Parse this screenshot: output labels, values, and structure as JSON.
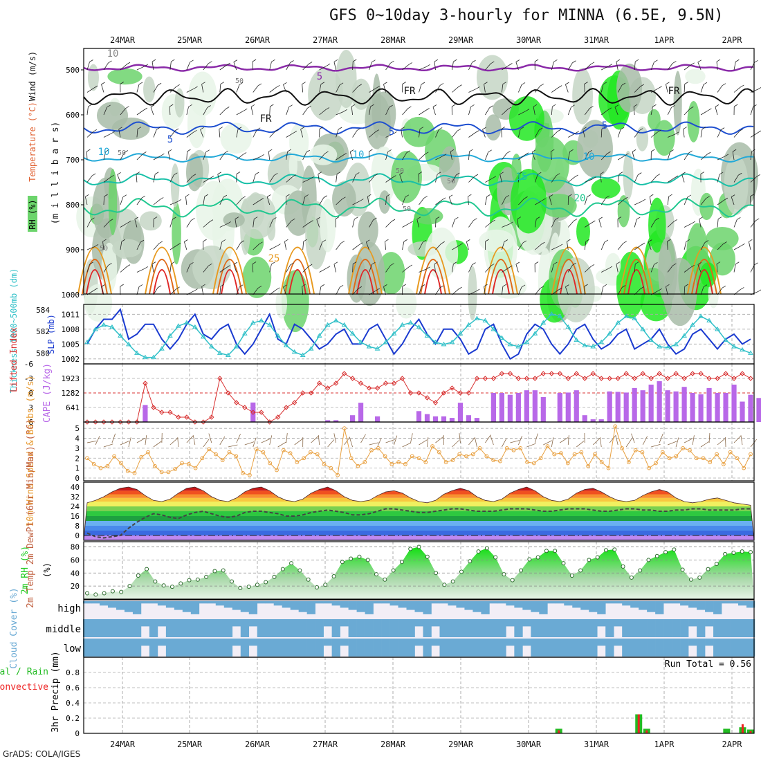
{
  "title": "GFS 0~10day 3-hourly for MINNA (6.5E, 9.5N)",
  "credit": "GrADS: COLA/IGES",
  "date_labels": [
    "24MAR",
    "25MAR",
    "26MAR",
    "27MAR",
    "28MAR",
    "29MAR",
    "30MAR",
    "31MAR",
    "1APR",
    "2APR"
  ],
  "colors": {
    "rh_light": "#e8f4e8",
    "rh_mid": "#c6d6c6",
    "rh_dark": "#a8bca8",
    "rh_green": "#6cd46c",
    "rh_bright": "#22e822",
    "temp_purple": "#8a2aa8",
    "temp_blue": "#1e4fd0",
    "temp_cyan": "#22a9d8",
    "temp_teal": "#18c0a8",
    "temp_orange": "#e89a20",
    "temp_dark_orange": "#e06a18",
    "temp_red": "#e02828",
    "slp": "#1a3ad0",
    "thickness": "#30c0c8",
    "li": "#d83030",
    "cape": "#b868e8",
    "wind10": "#e8a040",
    "rh2m": "#22cc22",
    "cloud": "#6aaad4",
    "rain": "#22bb22",
    "conv": "#ee2222"
  },
  "chart_data": [
    {
      "type": "heatmap",
      "name_label": "RH (%)",
      "y_axis_label": "(m i l l i b a r s)",
      "side_labels": [
        "RH (%)",
        "Temperature (°C)",
        "Wind (m/s)"
      ],
      "yticks": [
        500,
        600,
        700,
        800,
        900,
        1000
      ],
      "ylim": [
        1000,
        450
      ],
      "contour_labels": [
        "10",
        "5",
        "FR",
        "FR",
        "FR",
        "5",
        "5",
        "5",
        "10",
        "10",
        "10",
        "15",
        "20",
        "25"
      ],
      "rh_labels": [
        "50",
        "50",
        "50",
        "50",
        "50",
        "50"
      ]
    },
    {
      "type": "line",
      "left_label": "Thickness 1000~500mb (dm)",
      "right_label": "SLP (mb)",
      "left_ticks": [
        580,
        582,
        584
      ],
      "right_ticks": [
        1002,
        1005,
        1008,
        1011
      ],
      "slp_ylim": [
        1001,
        1013
      ],
      "series": [
        {
          "name": "SLP (mb)",
          "values": [
            1005,
            1008,
            1010,
            1010,
            1012,
            1006,
            1007,
            1009,
            1009,
            1006,
            1004,
            1006,
            1009,
            1011,
            1007,
            1006,
            1008,
            1009,
            1005,
            1003,
            1005,
            1008,
            1011,
            1006,
            1005,
            1009,
            1008,
            1006,
            1004,
            1005,
            1007,
            1008,
            1005,
            1005,
            1008,
            1009,
            1006,
            1003,
            1005,
            1008,
            1010,
            1007,
            1005,
            1008,
            1008,
            1006,
            1003,
            1004,
            1008,
            1009,
            1005,
            1002,
            1003,
            1007,
            1009,
            1008,
            1005,
            1003,
            1005,
            1008,
            1009,
            1006,
            1004,
            1005,
            1007,
            1008,
            1004,
            1005,
            1006,
            1008,
            1005,
            1003,
            1004,
            1007,
            1008,
            1006,
            1004,
            1006,
            1007,
            1005,
            1006
          ]
        },
        {
          "name": "1000~500mb thickness (dm)",
          "values": [
            581.0,
            582.2,
            582.6,
            582.4,
            581.6,
            580.8,
            580.0,
            579.6,
            579.6,
            580.4,
            581.6,
            582.5,
            582.8,
            582.4,
            581.5,
            580.6,
            580.0,
            579.8,
            580.6,
            581.8,
            582.8,
            583.0,
            582.6,
            581.6,
            580.7,
            580.1,
            579.8,
            580.4,
            581.6,
            582.6,
            583.0,
            582.6,
            581.8,
            581.0,
            580.6,
            580.4,
            581.0,
            581.8,
            582.6,
            582.8,
            582.4,
            581.6,
            581.0,
            580.8,
            581.0,
            581.8,
            582.6,
            583.2,
            583.0,
            582.2,
            581.4,
            580.8,
            580.6,
            581.0,
            581.8,
            582.8,
            583.6,
            583.4,
            582.4,
            581.2,
            580.7,
            580.6,
            581.0,
            581.8,
            582.8,
            583.4,
            583.2,
            582.2,
            581.2,
            580.6,
            580.5,
            580.8,
            581.6,
            582.6,
            583.4,
            583.0,
            582.2,
            581.2,
            580.6,
            580.3,
            580.0
          ]
        }
      ]
    },
    {
      "type": "bar",
      "left_label": "Lifted Index",
      "right_label": "CAPE (J/kg)",
      "li_ticks": [
        -6,
        -3,
        0,
        3,
        6
      ],
      "cape_ticks": [
        641,
        1282,
        1923
      ],
      "cape_ylim": [
        0,
        2564
      ],
      "li_ylim": [
        6,
        -6
      ],
      "series": [
        {
          "name": "CAPE (J/kg)",
          "values": [
            0,
            0,
            0,
            0,
            0,
            0,
            0,
            750,
            0,
            0,
            0,
            0,
            0,
            0,
            0,
            0,
            0,
            0,
            0,
            0,
            860,
            0,
            0,
            0,
            0,
            0,
            0,
            0,
            0,
            80,
            80,
            0,
            300,
            850,
            0,
            250,
            0,
            0,
            0,
            0,
            480,
            350,
            250,
            250,
            180,
            850,
            300,
            180,
            0,
            1282,
            1282,
            1200,
            1282,
            1400,
            1400,
            1100,
            0,
            1282,
            1300,
            1400,
            300,
            120,
            120,
            1350,
            1330,
            1300,
            1500,
            1400,
            1650,
            1800,
            1400,
            1350,
            1550,
            1282,
            1220,
            1500,
            1282,
            1282,
            1650,
            900,
            1200,
            1060,
            960
          ]
        },
        {
          "name": "Lifted Index",
          "values": [
            6,
            6,
            6,
            6,
            6,
            6,
            6,
            -2,
            3,
            4,
            4,
            5,
            5,
            6,
            6,
            5,
            -3,
            0,
            2,
            3,
            4,
            4,
            6,
            5,
            3,
            2,
            0,
            0,
            -2,
            -1,
            -2,
            -4,
            -3,
            -2,
            -1,
            -1,
            -2,
            -2,
            -3,
            0,
            0,
            1,
            2,
            0,
            -1,
            0,
            0,
            -3,
            -3,
            -3,
            -4,
            -4,
            -3,
            -3,
            -3,
            -4,
            -4,
            -4,
            -3,
            -4,
            -3,
            -4,
            -3,
            -3,
            -3,
            -4,
            -3,
            -4,
            -3,
            -4,
            -3,
            -4,
            -3,
            -4,
            -4,
            -3,
            -3,
            -4,
            -3,
            -4,
            -3
          ]
        }
      ]
    },
    {
      "type": "line",
      "left_label": "10m Wind Speed & Barbs (m/s)",
      "yticks": [
        0,
        1,
        2,
        3,
        4,
        5
      ],
      "ylim": [
        0,
        5.5
      ],
      "series": [
        {
          "name": "10m Wind Speed (m/s)",
          "values": [
            2.0,
            1.4,
            1.0,
            1.2,
            2.2,
            1.5,
            0.7,
            0.5,
            2.1,
            2.6,
            1.2,
            0.6,
            0.6,
            0.9,
            1.5,
            1.4,
            1.0,
            2.0,
            2.9,
            2.4,
            1.8,
            2.6,
            2.2,
            0.5,
            0.3,
            2.9,
            2.6,
            1.5,
            0.8,
            2.8,
            2.5,
            1.6,
            2.0,
            2.6,
            2.4,
            1.4,
            1.0,
            0.3,
            5.0,
            2.0,
            1.2,
            1.6,
            2.8,
            3.0,
            2.2,
            1.4,
            1.6,
            1.4,
            2.2,
            2.0,
            1.6,
            3.2,
            2.6,
            1.6,
            1.8,
            2.4,
            2.2,
            2.4,
            3.0,
            2.2,
            1.8,
            1.7,
            3.0,
            2.8,
            3.0,
            1.6,
            1.5,
            2.0,
            3.2,
            2.4,
            2.5,
            1.5,
            2.4,
            2.6,
            1.2,
            2.4,
            1.6,
            1.0,
            5.2,
            3.0,
            1.6,
            2.8,
            2.6,
            1.0,
            1.5,
            2.6,
            2.0,
            2.2,
            3.0,
            2.8,
            2.0,
            2.0,
            1.6,
            2.4,
            1.4,
            2.6,
            2.0,
            1.0,
            2.4
          ]
        }
      ]
    },
    {
      "type": "area",
      "left_label": "2m Temp 2m DewPt (6hr Min/Max) (°C)",
      "yticks": [
        0,
        8,
        16,
        24,
        32,
        40
      ],
      "ylim": [
        -4,
        44
      ],
      "series": [
        {
          "name": "2m Temp (°C)",
          "values": [
            27,
            29,
            32,
            36,
            39,
            40,
            38,
            33,
            29,
            28,
            30,
            35,
            39,
            40,
            37,
            32,
            29,
            28,
            31,
            36,
            39,
            40,
            37,
            32,
            29,
            28,
            30,
            35,
            38,
            40,
            37,
            32,
            29,
            28,
            29,
            33,
            36,
            37,
            35,
            31,
            28,
            27,
            29,
            34,
            37,
            39,
            37,
            32,
            29,
            28,
            30,
            35,
            38,
            40,
            37,
            32,
            29,
            28,
            30,
            35,
            38,
            39,
            36,
            32,
            29,
            28,
            29,
            33,
            36,
            38,
            36,
            31,
            28,
            27,
            28,
            30,
            31,
            29,
            27,
            26,
            25
          ]
        },
        {
          "name": "2m DewPt (°C)",
          "values": [
            2,
            -1,
            -2,
            -1,
            0,
            6,
            11,
            15,
            18,
            17,
            15,
            14,
            17,
            19,
            20,
            18,
            16,
            15,
            16,
            19,
            20,
            20,
            19,
            18,
            16,
            16,
            17,
            19,
            20,
            21,
            20,
            19,
            17,
            17,
            18,
            20,
            22,
            22,
            21,
            20,
            19,
            19,
            20,
            21,
            22,
            22,
            21,
            20,
            20,
            20,
            21,
            22,
            22,
            22,
            21,
            20,
            20,
            21,
            22,
            22,
            22,
            21,
            20,
            20,
            21,
            22,
            22,
            21,
            21,
            20,
            20,
            21,
            21,
            22,
            22,
            21,
            21,
            21,
            21,
            22,
            22
          ]
        }
      ]
    },
    {
      "type": "area",
      "left_label": "2m RH (%)",
      "yticks": [
        20,
        40,
        60,
        80
      ],
      "ylim": [
        0,
        88
      ],
      "series": [
        {
          "name": "2m RH (%)",
          "values": [
            9,
            7,
            9,
            12,
            11,
            20,
            36,
            46,
            27,
            21,
            19,
            24,
            29,
            30,
            34,
            43,
            44,
            27,
            17,
            19,
            22,
            26,
            34,
            46,
            55,
            44,
            30,
            18,
            22,
            35,
            57,
            62,
            65,
            60,
            38,
            30,
            44,
            57,
            77,
            80,
            65,
            40,
            22,
            27,
            42,
            58,
            73,
            78,
            64,
            38,
            29,
            44,
            61,
            64,
            74,
            74,
            55,
            36,
            44,
            60,
            64,
            75,
            76,
            50,
            33,
            44,
            60,
            66,
            72,
            76,
            45,
            30,
            33,
            46,
            54,
            69,
            71,
            73,
            72
          ]
        }
      ]
    },
    {
      "type": "bar",
      "left_label": "Cloud Cover (%)",
      "levels": [
        "high",
        "middle",
        "low"
      ]
    },
    {
      "type": "bar",
      "left_label": "3hr Precip (mm)",
      "side_labels": [
        "Total / Rain",
        "Convective"
      ],
      "annotation": "Run Total = 0.56",
      "yticks": [
        "0",
        "0.2",
        "0.4",
        "0.6",
        "0.8"
      ],
      "ylim": [
        0,
        1.0
      ],
      "series": [
        {
          "name": "Total / Rain",
          "values": [
            0,
            0,
            0,
            0,
            0,
            0,
            0,
            0,
            0,
            0,
            0,
            0,
            0,
            0,
            0,
            0,
            0,
            0,
            0,
            0,
            0,
            0,
            0,
            0,
            0,
            0,
            0,
            0,
            0,
            0,
            0,
            0,
            0,
            0,
            0,
            0,
            0,
            0,
            0,
            0,
            0,
            0,
            0,
            0,
            0,
            0,
            0,
            0,
            0,
            0,
            0,
            0,
            0,
            0,
            0,
            0,
            0,
            0,
            0,
            0.06,
            0,
            0,
            0,
            0,
            0,
            0,
            0,
            0,
            0,
            0.25,
            0.06,
            0,
            0,
            0,
            0,
            0,
            0,
            0,
            0,
            0,
            0.06,
            0,
            0.08,
            0.05
          ]
        },
        {
          "name": "Convective",
          "values": [
            0,
            0,
            0,
            0,
            0,
            0,
            0,
            0,
            0,
            0,
            0,
            0,
            0,
            0,
            0,
            0,
            0,
            0,
            0,
            0,
            0,
            0,
            0,
            0,
            0,
            0,
            0,
            0,
            0,
            0,
            0,
            0,
            0,
            0,
            0,
            0,
            0,
            0,
            0,
            0,
            0,
            0,
            0,
            0,
            0,
            0,
            0,
            0,
            0,
            0,
            0,
            0,
            0,
            0,
            0,
            0,
            0,
            0,
            0,
            0.04,
            0,
            0,
            0,
            0,
            0,
            0,
            0,
            0,
            0,
            0.25,
            0.04,
            0,
            0,
            0,
            0,
            0,
            0,
            0,
            0,
            0,
            0,
            0,
            0.12,
            0.03
          ]
        }
      ]
    }
  ]
}
